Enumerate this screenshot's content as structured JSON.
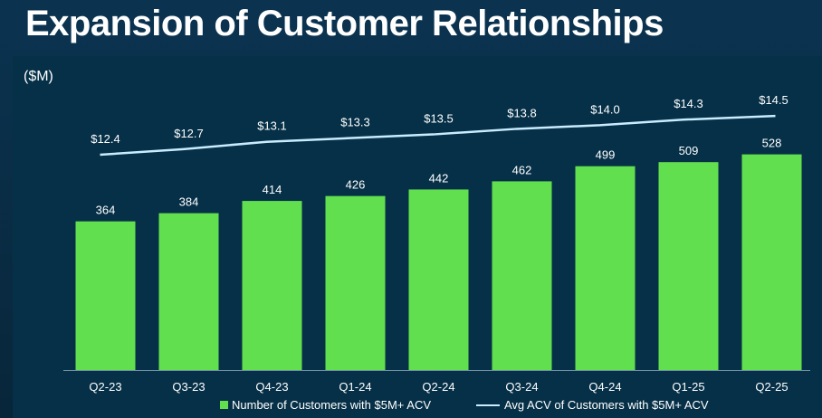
{
  "title": "Expansion of Customer Relationships",
  "unit_label": "($M)",
  "colors": {
    "bar": "#62df4e",
    "line": "#c9ecff",
    "text": "#ffffff"
  },
  "chart_data": {
    "type": "bar",
    "categories": [
      "Q2-23",
      "Q3-23",
      "Q4-23",
      "Q1-24",
      "Q2-24",
      "Q3-24",
      "Q4-24",
      "Q1-25",
      "Q2-25"
    ],
    "series": [
      {
        "name": "Number of Customers with $5M+ ACV",
        "type": "bar",
        "values": [
          364,
          384,
          414,
          426,
          442,
          462,
          499,
          509,
          528
        ]
      },
      {
        "name": "Avg ACV of Customers with $5M+ ACV",
        "type": "line",
        "values": [
          12.4,
          12.7,
          13.1,
          13.3,
          13.5,
          13.8,
          14.0,
          14.3,
          14.5
        ],
        "labels": [
          "$12.4",
          "$12.7",
          "$13.1",
          "$13.3",
          "$13.5",
          "$13.8",
          "$14.0",
          "$14.3",
          "$14.5"
        ]
      }
    ],
    "title": "Expansion of Customer Relationships",
    "ylabel": "($M)",
    "legend": "bottom",
    "grid": false
  },
  "legend": {
    "bar_label": "Number of Customers with $5M+ ACV",
    "line_label": "Avg ACV of Customers with $5M+ ACV"
  }
}
